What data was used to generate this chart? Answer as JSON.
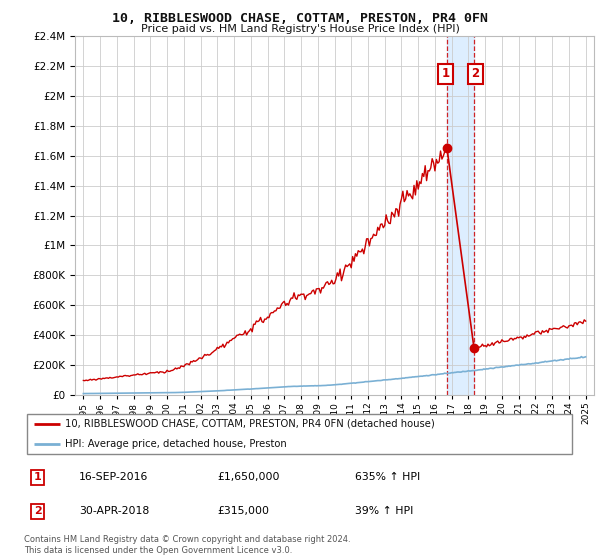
{
  "title": "10, RIBBLESWOOD CHASE, COTTAM, PRESTON, PR4 0FN",
  "subtitle": "Price paid vs. HM Land Registry's House Price Index (HPI)",
  "legend_line1": "10, RIBBLESWOOD CHASE, COTTAM, PRESTON, PR4 0FN (detached house)",
  "legend_line2": "HPI: Average price, detached house, Preston",
  "annotation1_date": "16-SEP-2016",
  "annotation1_price": "£1,650,000",
  "annotation1_hpi": "635% ↑ HPI",
  "annotation2_date": "30-APR-2018",
  "annotation2_price": "£315,000",
  "annotation2_hpi": "39% ↑ HPI",
  "footer": "Contains HM Land Registry data © Crown copyright and database right 2024.\nThis data is licensed under the Open Government Licence v3.0.",
  "sale1_year": 2016.72,
  "sale2_year": 2018.33,
  "sale1_price": 1650000,
  "sale2_price": 315000,
  "red_line_color": "#cc0000",
  "blue_line_color": "#7ab0d4",
  "shade_color": "#ddeeff",
  "background_color": "#ffffff",
  "grid_color": "#cccccc",
  "ylim_max": 2400000,
  "ylim_min": 0,
  "xlim_min": 1994.5,
  "xlim_max": 2025.5
}
